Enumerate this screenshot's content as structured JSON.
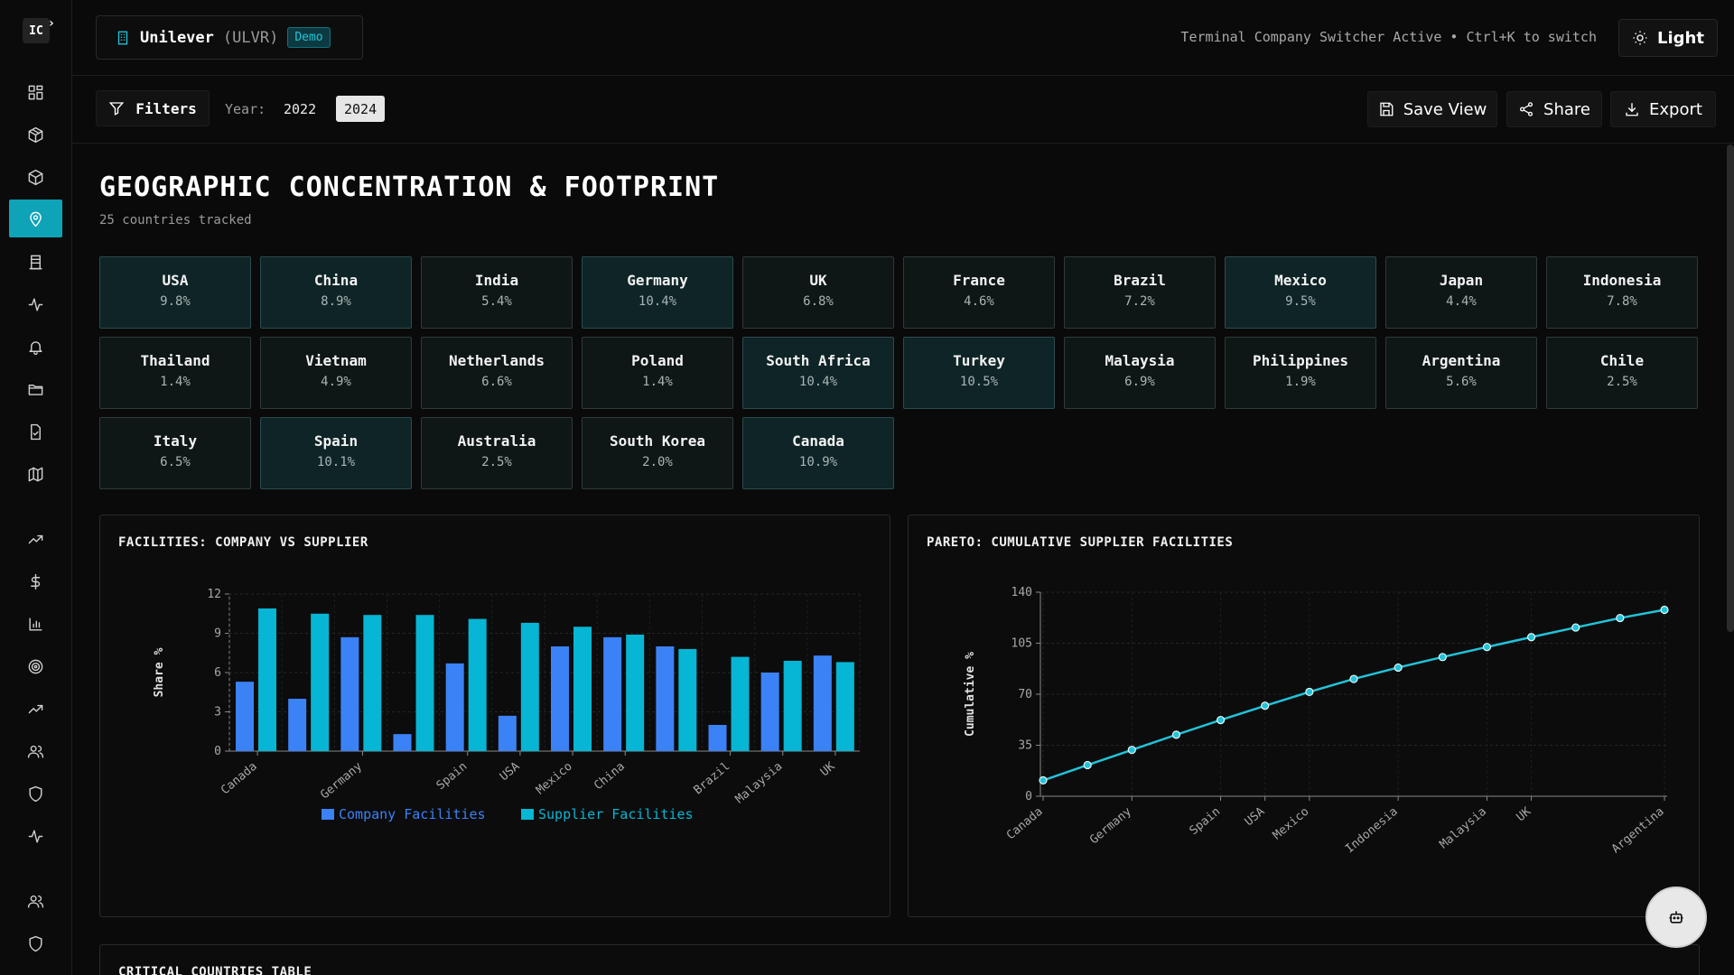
{
  "header": {
    "company_name": "Unilever",
    "ticker": "(ULVR)",
    "badge": "Demo",
    "switcher_status": "Terminal Company Switcher Active • Ctrl+K to switch",
    "theme_toggle": "Light"
  },
  "filterbar": {
    "filters_label": "Filters",
    "year_label": "Year:",
    "years": [
      "2022",
      "2024"
    ],
    "selected_year": "2024",
    "save_label": "Save View",
    "share_label": "Share",
    "export_label": "Export"
  },
  "sidebar": {
    "logo": "IC",
    "items": [
      "dashboard-icon",
      "package-icon",
      "box-icon",
      "map-pin-icon",
      "building-icon",
      "activity-icon",
      "bell-icon",
      "folder-icon",
      "file-check-icon",
      "map-icon",
      "trending-up-icon",
      "dollar-icon",
      "bar-chart-icon",
      "target-icon",
      "trending-up-icon",
      "users-icon",
      "shield-icon",
      "activity-icon",
      "users-icon",
      "shield-icon"
    ],
    "active": "map-pin-icon"
  },
  "page": {
    "title": "GEOGRAPHIC CONCENTRATION & FOOTPRINT",
    "subtitle": "25 countries tracked"
  },
  "countries": [
    {
      "name": "USA",
      "pct": "9.8%",
      "hi": true
    },
    {
      "name": "China",
      "pct": "8.9%",
      "hi": true
    },
    {
      "name": "India",
      "pct": "5.4%",
      "hi": false
    },
    {
      "name": "Germany",
      "pct": "10.4%",
      "hi": true
    },
    {
      "name": "UK",
      "pct": "6.8%",
      "hi": false
    },
    {
      "name": "France",
      "pct": "4.6%",
      "hi": false
    },
    {
      "name": "Brazil",
      "pct": "7.2%",
      "hi": false
    },
    {
      "name": "Mexico",
      "pct": "9.5%",
      "hi": true
    },
    {
      "name": "Japan",
      "pct": "4.4%",
      "hi": false
    },
    {
      "name": "Indonesia",
      "pct": "7.8%",
      "hi": false
    },
    {
      "name": "Thailand",
      "pct": "1.4%",
      "hi": false
    },
    {
      "name": "Vietnam",
      "pct": "4.9%",
      "hi": false
    },
    {
      "name": "Netherlands",
      "pct": "6.6%",
      "hi": false
    },
    {
      "name": "Poland",
      "pct": "1.4%",
      "hi": false
    },
    {
      "name": "South Africa",
      "pct": "10.4%",
      "hi": true
    },
    {
      "name": "Turkey",
      "pct": "10.5%",
      "hi": true
    },
    {
      "name": "Malaysia",
      "pct": "6.9%",
      "hi": false
    },
    {
      "name": "Philippines",
      "pct": "1.9%",
      "hi": false
    },
    {
      "name": "Argentina",
      "pct": "5.6%",
      "hi": false
    },
    {
      "name": "Chile",
      "pct": "2.5%",
      "hi": false
    },
    {
      "name": "Italy",
      "pct": "6.5%",
      "hi": false
    },
    {
      "name": "Spain",
      "pct": "10.1%",
      "hi": true
    },
    {
      "name": "Australia",
      "pct": "2.5%",
      "hi": false
    },
    {
      "name": "South Korea",
      "pct": "2.0%",
      "hi": false
    },
    {
      "name": "Canada",
      "pct": "10.9%",
      "hi": true
    }
  ],
  "next_section_title": "CRITICAL COUNTRIES TABLE",
  "chart_data": [
    {
      "type": "bar",
      "title": "FACILITIES: COMPANY VS SUPPLIER",
      "ylabel": "Share %",
      "xlabel": "",
      "ylim": [
        0,
        12
      ],
      "yticks": [
        0,
        3,
        6,
        9,
        12
      ],
      "categories": [
        "Canada",
        "",
        "Germany",
        "",
        "Spain",
        "USA",
        "Mexico",
        "China",
        "",
        "Brazil",
        "Malaysia",
        "UK"
      ],
      "tick_labels": [
        "Canada",
        "Germany",
        "Spain",
        "USA",
        "Mexico",
        "China",
        "Brazil",
        "Malaysia",
        "UK"
      ],
      "series": [
        {
          "name": "Company Facilities",
          "color": "#3b82f6",
          "values": [
            5.3,
            4.0,
            8.7,
            1.3,
            6.7,
            2.7,
            8.0,
            8.7,
            8.0,
            2.0,
            6.0,
            7.3
          ]
        },
        {
          "name": "Supplier Facilities",
          "color": "#06b6d4",
          "values": [
            10.9,
            10.5,
            10.4,
            10.4,
            10.1,
            9.8,
            9.5,
            8.9,
            7.8,
            7.2,
            6.9,
            6.8
          ]
        }
      ],
      "legend": "bottom",
      "grid": true
    },
    {
      "type": "line",
      "title": "PARETO: CUMULATIVE SUPPLIER FACILITIES",
      "ylabel": "Cumulative %",
      "ylim": [
        0,
        140
      ],
      "yticks": [
        0,
        35,
        70,
        105,
        140
      ],
      "x_count": 15,
      "tick_labels": [
        {
          "i": 0,
          "label": "Canada"
        },
        {
          "i": 2,
          "label": "Germany"
        },
        {
          "i": 4,
          "label": "Spain"
        },
        {
          "i": 5,
          "label": "USA"
        },
        {
          "i": 6,
          "label": "Mexico"
        },
        {
          "i": 8,
          "label": "Indonesia"
        },
        {
          "i": 10,
          "label": "Malaysia"
        },
        {
          "i": 11,
          "label": "UK"
        },
        {
          "i": 14,
          "label": "Argentina"
        }
      ],
      "values": [
        10.9,
        21.4,
        31.8,
        42.2,
        52.3,
        62.1,
        71.6,
        80.5,
        88.3,
        95.5,
        102.4,
        109.2,
        115.8,
        122.3,
        127.9
      ],
      "color": "#22c3d9",
      "grid": true
    }
  ]
}
